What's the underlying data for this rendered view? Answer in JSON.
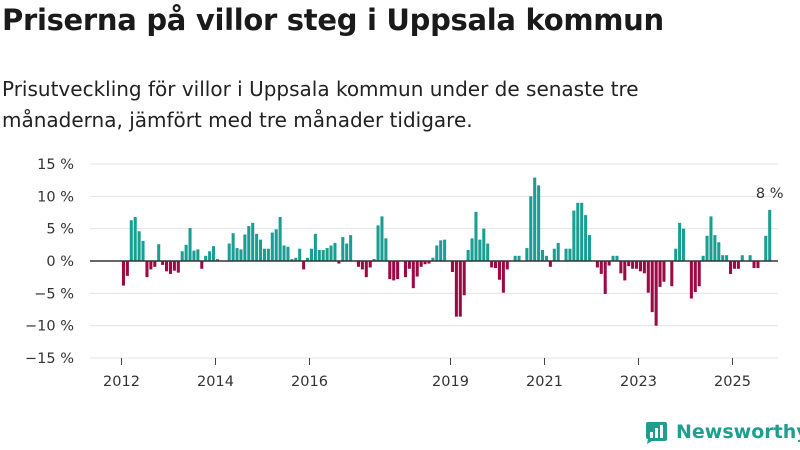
{
  "title": "Priserna på villor steg i Uppsala kommun",
  "subtitle": "Prisutveckling för villor i Uppsala kommun under de senaste tre månaderna, jämfört med tre månader tidigare.",
  "brand": {
    "name": "Newsworthy",
    "icon": "newsworthy-logo-icon"
  },
  "colors": {
    "positive": "#1a9e93",
    "negative": "#9c0a46",
    "grid": "#e3e3e3",
    "zero_line": "#333333",
    "brand": "#1f9e90"
  },
  "chart_data": {
    "type": "bar",
    "title": "Priserna på villor steg i Uppsala kommun",
    "subtitle": "Prisutveckling för villor i Uppsala kommun under de senaste tre månaderna, jämfört med tre månader tidigare.",
    "xlabel": "",
    "ylabel": "",
    "y_unit": "%",
    "ylim": [
      -15,
      15
    ],
    "y_ticks": [
      15,
      10,
      5,
      0,
      -5,
      -10,
      -15
    ],
    "y_tick_labels": [
      "15 %",
      "10 %",
      "5 %",
      "0 %",
      "−5 %",
      "−10 %",
      "−15 %"
    ],
    "x_ticks": [
      {
        "label": "2012",
        "year": 2012
      },
      {
        "label": "2014",
        "year": 2014
      },
      {
        "label": "2016",
        "year": 2016
      },
      {
        "label": "2019",
        "year": 2019
      },
      {
        "label": "2021",
        "year": 2021
      },
      {
        "label": "2023",
        "year": 2023
      },
      {
        "label": "2025",
        "year": 2025
      }
    ],
    "grid": true,
    "legend": "none",
    "series": [
      {
        "start_year": 2012,
        "months_per_bar": 1,
        "values": [
          -3.8,
          -2.3,
          6.3,
          6.8,
          4.6,
          3.1,
          -2.5,
          -1.3,
          -0.9,
          2.6,
          -0.6,
          -1.6,
          -2.0,
          -1.5,
          -1.8,
          1.5,
          2.5,
          5.1,
          1.6,
          1.8,
          -1.2,
          0.8,
          1.5,
          2.3,
          0.3,
          0.0,
          0.0,
          2.7,
          4.3,
          2.0,
          1.8,
          4.1,
          5.4,
          5.9,
          4.2,
          3.3,
          1.9,
          1.9,
          4.4,
          4.9,
          6.8,
          2.4,
          2.2,
          0.3,
          0.5,
          1.9,
          -1.3,
          0.5,
          1.9,
          4.2,
          1.7,
          1.7,
          2.0,
          2.4,
          2.8,
          -0.4,
          3.7,
          2.7,
          4.0,
          0.0,
          -0.9,
          -1.3,
          -2.5,
          -1.0,
          0.3,
          5.5,
          6.9,
          3.5,
          -2.8,
          -3.0,
          -2.8,
          0.0,
          -2.5,
          -1.2,
          -4.2,
          -2.4,
          -0.9,
          -0.5,
          -0.4,
          0.5,
          2.4,
          3.2,
          3.3,
          0.0,
          -1.7,
          -8.6,
          -8.6,
          -5.3,
          1.7,
          3.5,
          7.6,
          3.3,
          5.0,
          2.7,
          -1.0,
          -1.1,
          -2.9,
          -4.9,
          -1.3,
          0.0,
          0.8,
          0.8,
          0.0,
          2.0,
          10.0,
          12.9,
          11.7,
          1.7,
          0.8,
          -0.9,
          1.9,
          2.8,
          0.0,
          1.9,
          1.9,
          7.8,
          9.0,
          9.0,
          7.1,
          4.0,
          0.0,
          -1.0,
          -2.0,
          -5.1,
          -0.7,
          0.8,
          0.8,
          -1.9,
          -3.0,
          -0.8,
          -1.2,
          -1.2,
          -1.6,
          -1.9,
          -4.9,
          -7.9,
          -10.0,
          -4.0,
          -3.2,
          0.0,
          -3.9,
          1.9,
          5.9,
          5.0,
          0.0,
          -5.8,
          -4.8,
          -3.9,
          0.8,
          3.9,
          6.9,
          4.0,
          2.9,
          0.9,
          0.9,
          -2.0,
          -1.2,
          -1.2,
          0.9,
          0.0,
          0.9,
          -1.1,
          -1.1,
          0.0,
          3.9,
          7.9
        ]
      }
    ],
    "annotations": [
      {
        "text": "8 %",
        "value": 7.9,
        "position": "last-bar"
      }
    ]
  }
}
